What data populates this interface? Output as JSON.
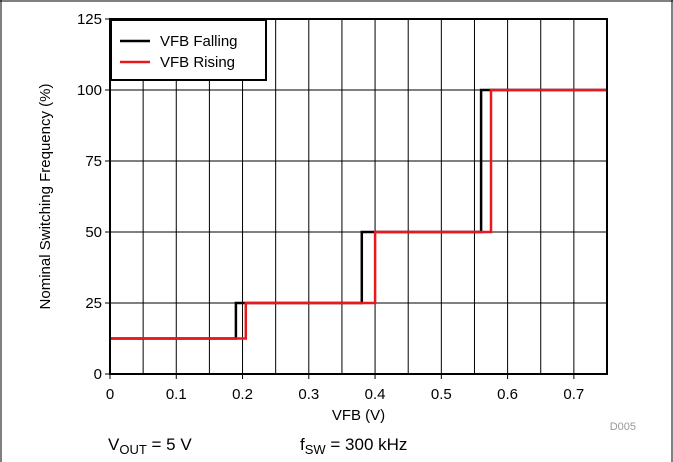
{
  "chart_data": {
    "type": "line",
    "xlabel": "VFB (V)",
    "ylabel": "Nominal Switching Frequency (%)",
    "xlim": [
      0,
      0.75
    ],
    "ylim": [
      0,
      125
    ],
    "x_ticks": [
      0,
      0.1,
      0.2,
      0.3,
      0.4,
      0.5,
      0.6,
      0.7
    ],
    "x_tick_labels": [
      "0",
      "0.1",
      "0.2",
      "0.3",
      "0.4",
      "0.5",
      "0.6",
      "0.7"
    ],
    "y_ticks": [
      0,
      25,
      50,
      75,
      100,
      125
    ],
    "y_tick_labels": [
      "0",
      "25",
      "50",
      "75",
      "100",
      "125"
    ],
    "x_minor_step": 0.05,
    "grid": true,
    "legend_position": "top-left",
    "series": [
      {
        "name": "VFB Falling",
        "color": "#000000",
        "x": [
          0,
          0.19,
          0.19,
          0.38,
          0.38,
          0.56,
          0.56,
          0.75
        ],
        "y": [
          12.5,
          12.5,
          25,
          25,
          50,
          50,
          100,
          100
        ]
      },
      {
        "name": "VFB Rising",
        "color": "#e8191c",
        "x": [
          0,
          0.205,
          0.205,
          0.4,
          0.4,
          0.575,
          0.575,
          0.75
        ],
        "y": [
          12.5,
          12.5,
          25,
          25,
          50,
          50,
          100,
          100
        ]
      }
    ],
    "figure_code": "D005"
  },
  "conditions": {
    "vout_symbol": "V",
    "vout_subscript": "OUT",
    "vout_value": " = 5 V",
    "fsw_symbol": "f",
    "fsw_subscript": "SW",
    "fsw_value": " = 300 kHz"
  }
}
